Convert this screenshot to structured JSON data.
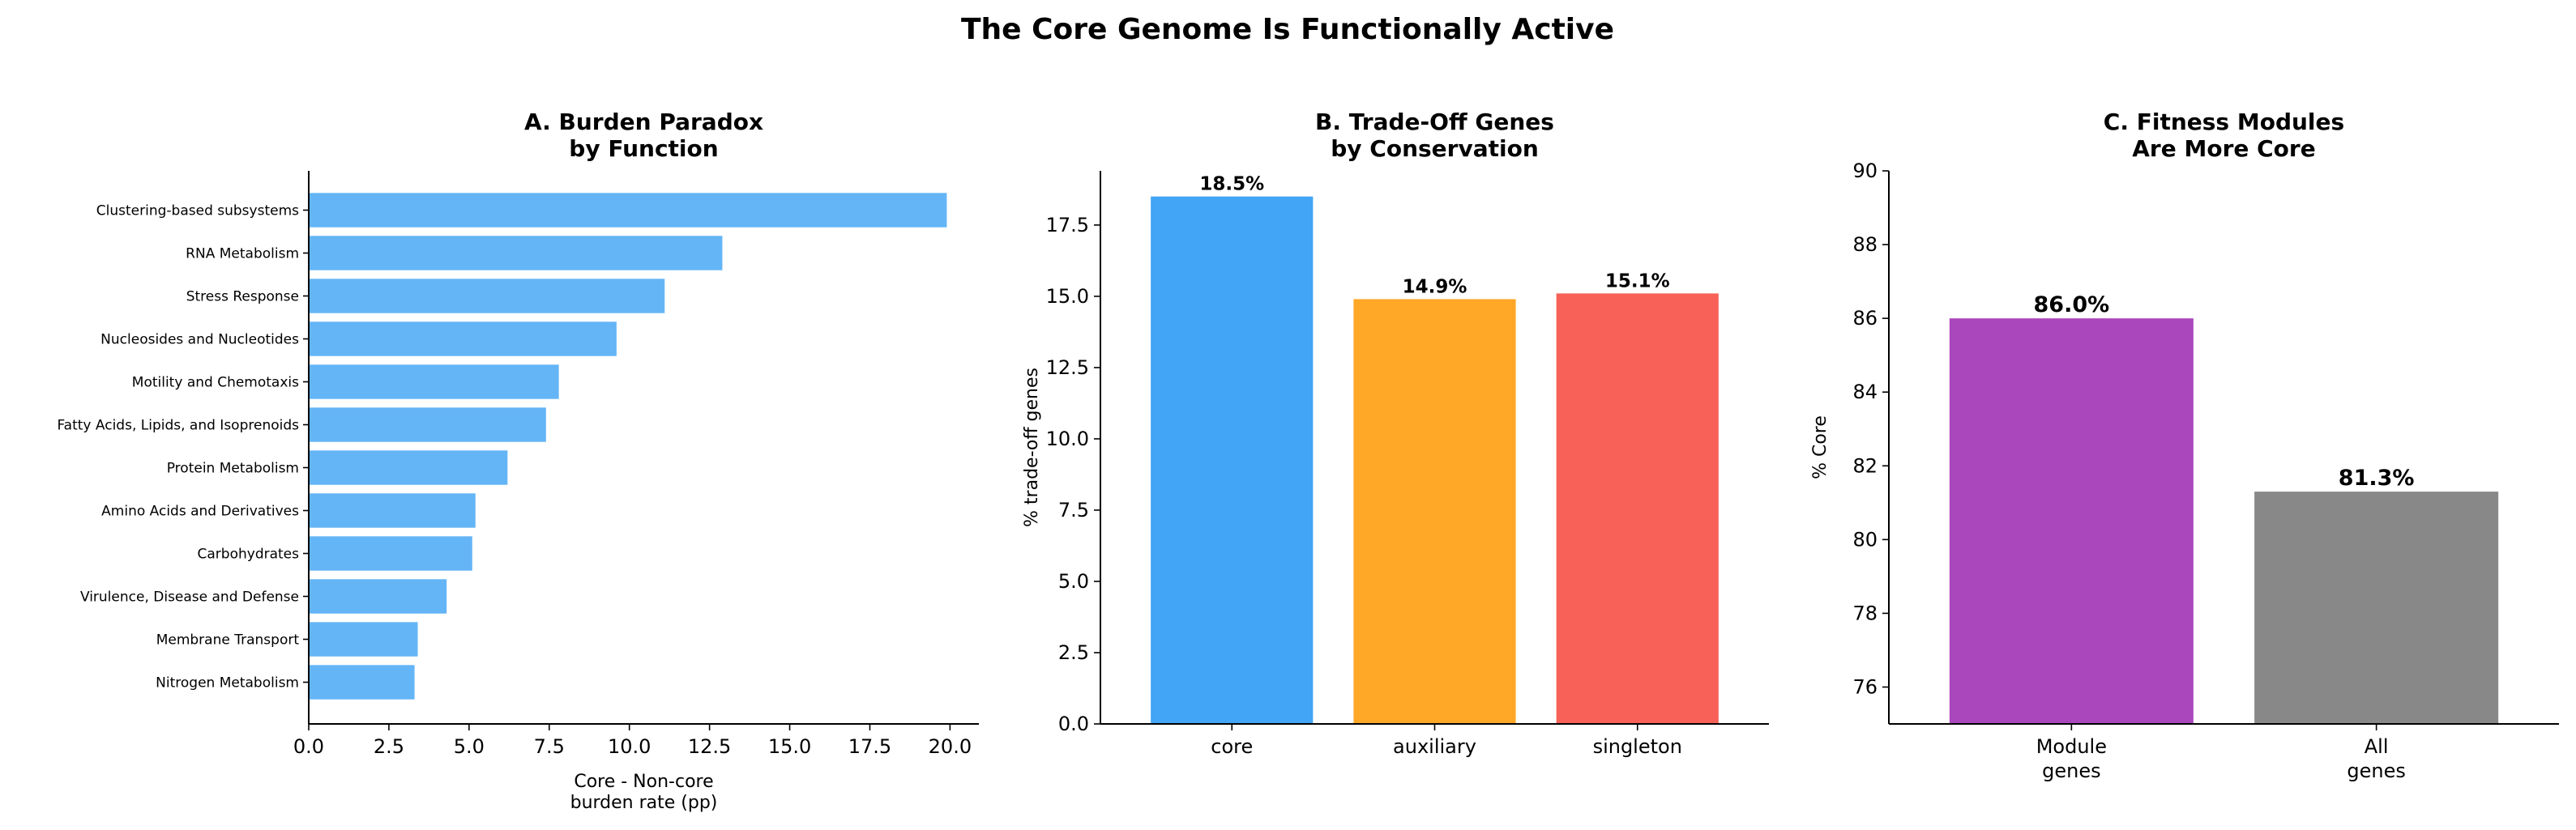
{
  "figure_title": "The Core Genome Is Functionally Active",
  "chart_data": [
    {
      "type": "bar",
      "orientation": "horizontal",
      "title": [
        "A. Burden Paradox",
        "by Function"
      ],
      "categories": [
        "Clustering-based subsystems",
        "RNA Metabolism",
        "Stress Response",
        "Nucleosides and Nucleotides",
        "Motility and Chemotaxis",
        "Fatty Acids, Lipids, and Isoprenoids",
        "Protein Metabolism",
        "Amino Acids and Derivatives",
        "Carbohydrates",
        "Virulence, Disease and Defense",
        "Membrane Transport",
        "Nitrogen Metabolism"
      ],
      "values": [
        19.9,
        12.9,
        11.1,
        9.6,
        7.8,
        7.4,
        6.2,
        5.2,
        5.1,
        4.3,
        3.4,
        3.3
      ],
      "xlabel": [
        "Core - Non-core",
        "burden rate (pp)"
      ],
      "ylabel": "",
      "xlim": [
        0,
        20.9
      ],
      "xticks": [
        "0.0",
        "2.5",
        "5.0",
        "7.5",
        "10.0",
        "12.5",
        "15.0",
        "17.5",
        "20.0"
      ],
      "color": "#64b5f6",
      "grid": false
    },
    {
      "type": "bar",
      "title": [
        "B. Trade-Off Genes",
        "by Conservation"
      ],
      "categories": [
        "core",
        "auxiliary",
        "singleton"
      ],
      "values": [
        18.5,
        14.9,
        15.1
      ],
      "data_labels": [
        "18.5%",
        "14.9%",
        "15.1%"
      ],
      "colors": [
        "#42a5f5",
        "#ffa726",
        "#f76157"
      ],
      "ylabel": "% trade-off genes",
      "xlabel": "",
      "ylim": [
        0,
        19.4
      ],
      "yticks": [
        "0.0",
        "2.5",
        "5.0",
        "7.5",
        "10.0",
        "12.5",
        "15.0",
        "17.5"
      ],
      "grid": false
    },
    {
      "type": "bar",
      "title": [
        "C. Fitness Modules",
        "Are More Core"
      ],
      "categories": [
        [
          "Module",
          "genes"
        ],
        [
          "All",
          "genes"
        ]
      ],
      "values": [
        86.0,
        81.3
      ],
      "data_labels": [
        "86.0%",
        "81.3%"
      ],
      "colors": [
        "#ab47bc",
        "#888888"
      ],
      "ylabel": "% Core",
      "xlabel": "",
      "ylim": [
        75,
        90
      ],
      "yticks": [
        "76",
        "78",
        "80",
        "82",
        "84",
        "86",
        "88",
        "90"
      ],
      "grid": false
    }
  ]
}
